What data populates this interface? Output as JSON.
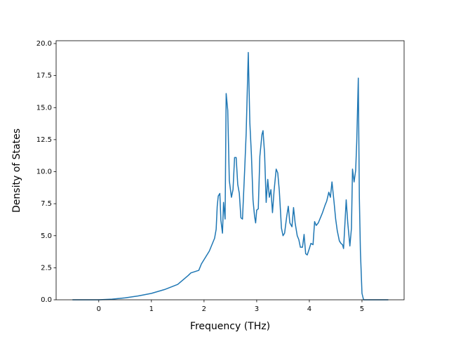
{
  "chart_data": {
    "type": "line",
    "xlabel": "Frequency (THz)",
    "ylabel": "Density of States",
    "x": [
      -0.5,
      0,
      0.25,
      0.5,
      0.75,
      1,
      1.25,
      1.5,
      1.7,
      1.75,
      1.9,
      1.95,
      2.1,
      2.2,
      2.23,
      2.25,
      2.27,
      2.3,
      2.32,
      2.35,
      2.37,
      2.4,
      2.42,
      2.45,
      2.48,
      2.52,
      2.55,
      2.58,
      2.61,
      2.64,
      2.67,
      2.7,
      2.73,
      2.77,
      2.8,
      2.84,
      2.87,
      2.9,
      2.93,
      2.96,
      2.98,
      3.0,
      3.03,
      3.06,
      3.1,
      3.12,
      3.15,
      3.18,
      3.21,
      3.24,
      3.27,
      3.3,
      3.33,
      3.37,
      3.4,
      3.43,
      3.47,
      3.5,
      3.53,
      3.57,
      3.6,
      3.63,
      3.67,
      3.7,
      3.73,
      3.77,
      3.8,
      3.83,
      3.87,
      3.9,
      3.93,
      3.96,
      4.0,
      4.03,
      4.07,
      4.1,
      4.13,
      4.17,
      4.2,
      4.25,
      4.3,
      4.33,
      4.37,
      4.4,
      4.43,
      4.47,
      4.5,
      4.53,
      4.57,
      4.6,
      4.63,
      4.65,
      4.67,
      4.7,
      4.73,
      4.77,
      4.8,
      4.82,
      4.85,
      4.88,
      4.9,
      4.93,
      4.95,
      4.97,
      5.0,
      5.03,
      5.5
    ],
    "series": [
      {
        "color": "#1f77b4",
        "values": [
          0,
          0,
          0.05,
          0.15,
          0.3,
          0.5,
          0.8,
          1.2,
          1.9,
          2.1,
          2.3,
          2.8,
          3.8,
          4.8,
          5.5,
          7.3,
          8.1,
          8.3,
          6.2,
          5.2,
          7.6,
          6.3,
          16.1,
          14.8,
          9.3,
          8.0,
          8.6,
          11.1,
          11.1,
          9.0,
          8.3,
          6.4,
          6.3,
          10.0,
          13.0,
          19.3,
          13.8,
          11.3,
          7.8,
          6.5,
          6.0,
          7.0,
          7.1,
          11.2,
          12.9,
          13.2,
          11.4,
          7.6,
          9.4,
          8.0,
          8.6,
          6.8,
          8.5,
          10.2,
          9.9,
          8.5,
          5.6,
          5.0,
          5.2,
          6.5,
          7.3,
          6.0,
          5.7,
          7.2,
          6.0,
          5.0,
          4.7,
          4.1,
          4.1,
          5.1,
          3.6,
          3.5,
          4.0,
          4.4,
          4.3,
          6.1,
          5.8,
          6.0,
          6.3,
          6.8,
          7.4,
          7.7,
          8.4,
          8.0,
          9.2,
          7.6,
          6.3,
          5.4,
          4.6,
          4.4,
          4.3,
          4.0,
          5.5,
          7.8,
          6.0,
          4.2,
          5.6,
          10.2,
          9.2,
          10.1,
          12.3,
          17.3,
          8.0,
          3.8,
          0.5,
          0,
          0
        ]
      }
    ],
    "xlim": [
      -0.81,
      5.8
    ],
    "xticks": [
      0,
      1,
      2,
      3,
      4,
      5
    ],
    "ylim": [
      0,
      20.22
    ],
    "yticks": [
      {
        "value": 0,
        "label": "0.0"
      },
      {
        "value": 2.5,
        "label": "2.5"
      },
      {
        "value": 5,
        "label": "5.0"
      },
      {
        "value": 7.5,
        "label": "7.5"
      },
      {
        "value": 10,
        "label": "10.0"
      },
      {
        "value": 12.5,
        "label": "12.5"
      },
      {
        "value": 15,
        "label": "15.0"
      },
      {
        "value": 17.5,
        "label": "17.5"
      },
      {
        "value": 20,
        "label": "20.0"
      }
    ],
    "grid": false
  }
}
